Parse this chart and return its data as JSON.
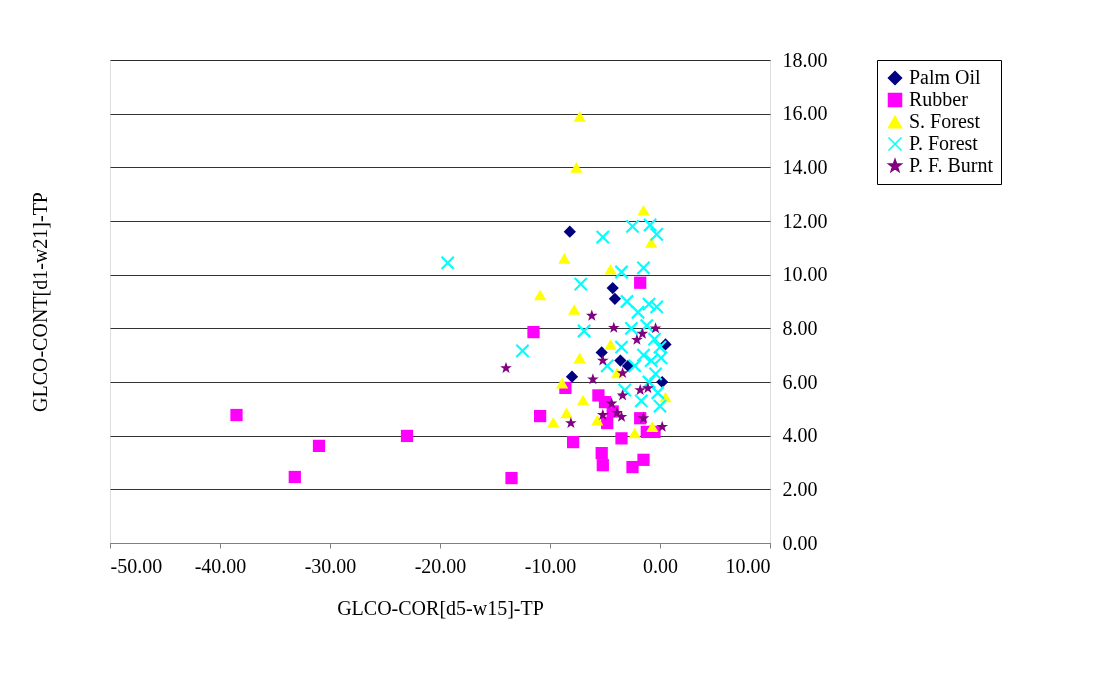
{
  "chart_data": {
    "type": "scatter",
    "xlabel": "GLCO-COR[d5-w15]-TP",
    "ylabel": "GLCO-CONT[d1-w21]-TP",
    "xlim": [
      -50,
      10
    ],
    "ylim": [
      0,
      18
    ],
    "xticks": [
      {
        "value": -50,
        "label": "-50.00"
      },
      {
        "value": -40,
        "label": "-40.00"
      },
      {
        "value": -30,
        "label": "-30.00"
      },
      {
        "value": -20,
        "label": "-20.00"
      },
      {
        "value": -10,
        "label": "-10.00"
      },
      {
        "value": 0,
        "label": "0.00"
      },
      {
        "value": 10,
        "label": "10.00"
      }
    ],
    "yticks": [
      {
        "value": 0,
        "label": "0.00"
      },
      {
        "value": 2,
        "label": "2.00"
      },
      {
        "value": 4,
        "label": "4.00"
      },
      {
        "value": 6,
        "label": "6.00"
      },
      {
        "value": 8,
        "label": "8.00"
      },
      {
        "value": 10,
        "label": "10.00"
      },
      {
        "value": 12,
        "label": "12.00"
      },
      {
        "value": 14,
        "label": "14.00"
      },
      {
        "value": 16,
        "label": "16.00"
      },
      {
        "value": 18,
        "label": "18.00"
      }
    ],
    "grid": "y",
    "legend": "right",
    "series": [
      {
        "name": "Palm Oil",
        "color": "#000080",
        "marker": "diamond",
        "x": [
          -8.2,
          -4.3,
          -4.1,
          -8.0,
          -3.6,
          -5.3,
          0.2,
          0.5,
          -2.9
        ],
        "values": [
          11.6,
          9.5,
          9.1,
          6.2,
          6.8,
          7.1,
          6.0,
          7.4,
          6.6
        ]
      },
      {
        "name": "Rubber",
        "color": "#ff00ff",
        "marker": "square",
        "x": [
          -38.5,
          -33.2,
          -31.0,
          -23.0,
          -13.5,
          -11.5,
          -10.9,
          -8.6,
          -7.9,
          -5.3,
          -5.2,
          -2.5,
          -1.5,
          -5.6,
          -4.8,
          -3.5,
          -1.2,
          -0.5,
          -1.8,
          -4.3,
          -5.0,
          -1.8
        ],
        "values": [
          4.77,
          2.46,
          3.62,
          3.99,
          2.42,
          7.86,
          4.73,
          5.78,
          3.76,
          3.35,
          2.9,
          2.83,
          3.1,
          5.5,
          4.47,
          3.9,
          4.14,
          4.14,
          4.65,
          4.9,
          5.25,
          9.7
        ]
      },
      {
        "name": "S. Forest",
        "color": "#ffff00",
        "marker": "triangle",
        "x": [
          -7.3,
          -7.6,
          -1.5,
          -0.8,
          -8.7,
          -4.5,
          -10.9,
          -7.8,
          -7.3,
          -8.9,
          -7.0,
          -8.5,
          -9.7,
          -5.7,
          -4.5,
          -2.3,
          0.5,
          -0.7,
          -3.9
        ],
        "values": [
          15.9,
          14.0,
          12.4,
          11.2,
          10.6,
          10.2,
          9.24,
          8.7,
          6.9,
          5.96,
          5.33,
          4.85,
          4.5,
          4.58,
          7.4,
          4.1,
          5.44,
          4.33,
          6.34
        ]
      },
      {
        "name": "P. Forest",
        "color": "#00ffff",
        "marker": "cross",
        "x": [
          -19.3,
          -12.5,
          -5.2,
          -2.5,
          -0.9,
          -0.3,
          -3.5,
          -1.5,
          -7.2,
          -6.9,
          -3.0,
          -2.0,
          -1.0,
          -0.3,
          -2.6,
          -1.2,
          -0.5,
          0.0,
          -1.5,
          -0.8,
          0.1,
          -2.3,
          -0.4,
          -1.0,
          -0.2,
          -3.2,
          -1.7,
          0.0,
          -3.5,
          -4.8
        ],
        "values": [
          10.44,
          7.16,
          11.4,
          11.8,
          11.85,
          11.5,
          10.1,
          10.25,
          9.65,
          7.9,
          9.0,
          8.6,
          8.9,
          8.8,
          8.0,
          8.1,
          7.6,
          7.3,
          7.0,
          6.8,
          6.9,
          6.6,
          6.3,
          6.0,
          5.6,
          5.7,
          5.3,
          5.1,
          7.3,
          6.6
        ]
      },
      {
        "name": "P. F. Burnt",
        "color": "#800080",
        "marker": "star",
        "x": [
          -14.0,
          -6.2,
          -4.2,
          -1.6,
          -0.4,
          -2.1,
          -5.2,
          -3.4,
          -6.1,
          -3.4,
          -1.8,
          -1.1,
          -4.4,
          -5.2,
          -3.9,
          -3.5,
          -8.1,
          -1.5,
          0.2
        ],
        "values": [
          6.52,
          8.47,
          8.02,
          7.8,
          8.0,
          7.57,
          6.8,
          6.33,
          6.1,
          5.5,
          5.7,
          5.77,
          5.2,
          4.77,
          4.85,
          4.7,
          4.47,
          4.65,
          4.33
        ]
      }
    ]
  }
}
